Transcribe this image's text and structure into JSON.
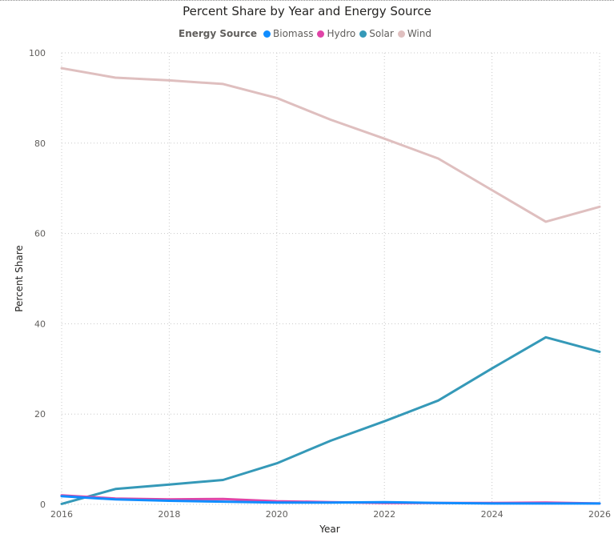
{
  "chart_data": {
    "type": "line",
    "title": "Percent Share by Year and Energy Source",
    "xlabel": "Year",
    "ylabel": "Percent Share",
    "legend_title": "Energy Source",
    "legend_position": "top-center",
    "grid": true,
    "xlim": [
      2016,
      2026
    ],
    "ylim": [
      0,
      100
    ],
    "x_ticks": [
      2016,
      2018,
      2020,
      2022,
      2024,
      2026
    ],
    "y_ticks": [
      0,
      20,
      40,
      60,
      80,
      100
    ],
    "x": [
      2016,
      2017,
      2018,
      2019,
      2020,
      2021,
      2022,
      2023,
      2024,
      2025,
      2026
    ],
    "series": [
      {
        "name": "Biomass",
        "color": "#118DFF",
        "values": [
          1.8,
          1.1,
          0.8,
          0.6,
          0.4,
          0.4,
          0.5,
          0.3,
          0.2,
          0.2,
          0.2
        ]
      },
      {
        "name": "Hydro",
        "color": "#E044A7",
        "values": [
          2.0,
          1.3,
          1.1,
          1.2,
          0.7,
          0.5,
          0.3,
          0.3,
          0.3,
          0.4,
          0.2
        ]
      },
      {
        "name": "Solar",
        "color": "#3599B8",
        "values": [
          0.1,
          3.4,
          4.4,
          5.4,
          9.1,
          14.1,
          18.4,
          23.0,
          30.1,
          37.0,
          33.8
        ]
      },
      {
        "name": "Wind",
        "color": "#DFBFBF",
        "values": [
          96.6,
          94.5,
          93.9,
          93.1,
          90.0,
          85.2,
          81.0,
          76.6,
          69.6,
          62.6,
          65.9
        ]
      }
    ]
  }
}
